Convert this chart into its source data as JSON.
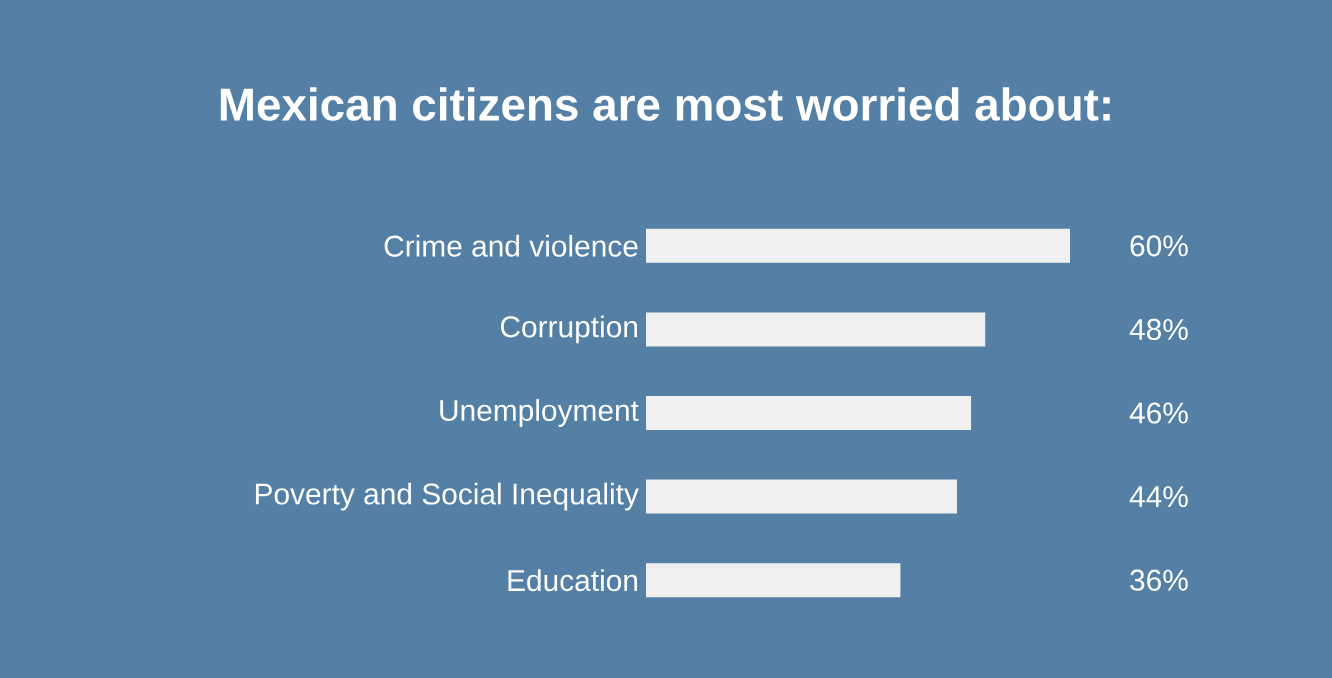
{
  "chart_data": {
    "type": "bar",
    "orientation": "horizontal",
    "title": "Mexican citizens are most worried about:",
    "categories": [
      "Crime and violence",
      "Corruption",
      "Unemployment",
      "Poverty and Social Inequality",
      "Education"
    ],
    "values": [
      60,
      48,
      46,
      44,
      36
    ],
    "value_labels": [
      "60%",
      "48%",
      "46%",
      "44%",
      "36%"
    ],
    "color": "#f0f0f0"
  }
}
